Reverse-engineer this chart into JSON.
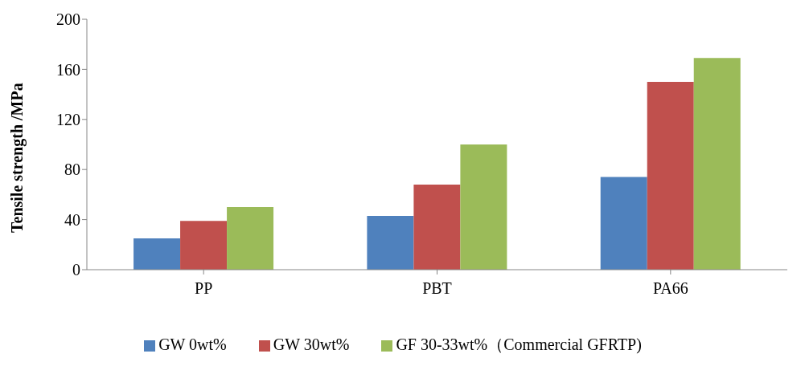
{
  "chart_data": {
    "type": "bar",
    "ylabel": "Tensile strength /MPa",
    "categories": [
      "PP",
      "PBT",
      "PA66"
    ],
    "series": [
      {
        "name": "GW 0wt%",
        "color": "#4f81bd",
        "values": [
          25,
          43,
          74
        ]
      },
      {
        "name": "GW 30wt%",
        "color": "#c0504d",
        "values": [
          39,
          68,
          150
        ]
      },
      {
        "name": "GF 30-33wt%（Commercial GFRTP)",
        "color": "#9bbb59",
        "values": [
          50,
          100,
          169
        ]
      }
    ],
    "ylim": [
      0,
      200
    ],
    "yticks": [
      0,
      40,
      80,
      120,
      160,
      200
    ],
    "grid": false,
    "legend": "bottom"
  }
}
